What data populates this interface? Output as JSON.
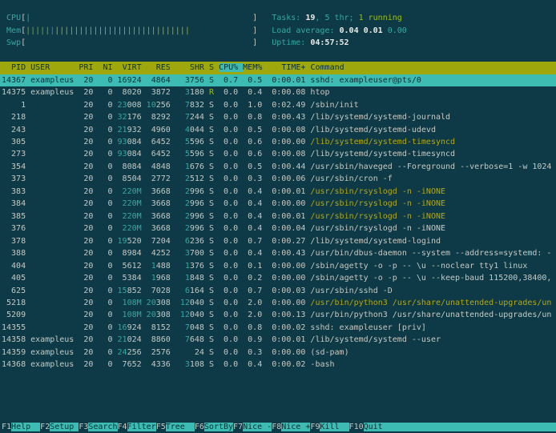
{
  "app": "htop",
  "colors": {
    "bg": "#0d3a46",
    "fg": "#c6c9c5",
    "teal": "#35a9a2",
    "white": "#e9ebe8",
    "green": "#9ebe0a",
    "yellow": "#b5a70d",
    "blue": "#4b84b8",
    "memGreen": "#79a634",
    "selBg": "#3cbcb2",
    "selFg": "#0b3137",
    "hdrBg": "#9ea70b",
    "hdrFg": "#0b3137",
    "sortBg": "#3cbcb2"
  },
  "meters": [
    {
      "name": "cpu-meter",
      "label": "CPU",
      "bars": [
        {
          "color": "teal",
          "count": 1
        }
      ]
    },
    {
      "name": "mem-meter",
      "label": "Mem",
      "bars": [
        {
          "color": "memGreen",
          "count": 5
        },
        {
          "color": "blue",
          "count": 1
        },
        {
          "color": "yellow",
          "count": 28
        }
      ]
    },
    {
      "name": "swp-meter",
      "label": "Swp",
      "bars": []
    }
  ],
  "info_lines": [
    {
      "name": "tasks-summary",
      "parts": [
        {
          "t": "Tasks: ",
          "c": "teal"
        },
        {
          "t": "19",
          "c": "white",
          "b": true
        },
        {
          "t": ", 5 thr; ",
          "c": "teal"
        },
        {
          "t": "1 running",
          "c": "green"
        }
      ]
    },
    {
      "name": "load-average",
      "parts": [
        {
          "t": "Load average: ",
          "c": "teal"
        },
        {
          "t": "0.04 ",
          "c": "white",
          "b": true
        },
        {
          "t": "0.01 ",
          "c": "white",
          "b": true
        },
        {
          "t": "0.00",
          "c": "teal"
        }
      ]
    },
    {
      "name": "uptime",
      "parts": [
        {
          "t": "Uptime: ",
          "c": "teal"
        },
        {
          "t": "04:57:52",
          "c": "white",
          "b": true
        }
      ]
    }
  ],
  "table": {
    "columns": [
      "PID",
      "USER",
      "PRI",
      "NI",
      "VIRT",
      "RES",
      "SHR",
      "S",
      "CPU%",
      "MEM%",
      "TIME+",
      "Command"
    ],
    "sort_column": "CPU%",
    "rows": [
      {
        "pid": "14367",
        "user": "exampleus",
        "pri": "20",
        "ni": "0",
        "virt": [
          "16924",
          2
        ],
        "res": [
          "4864",
          0
        ],
        "shr": [
          "3756",
          1
        ],
        "s": "S",
        "cpu": "0.7",
        "mem": "0.5",
        "time": "0:00.01",
        "cmd": "sshd: exampleuser@pts/0",
        "selected": true
      },
      {
        "pid": "14375",
        "user": "exampleus",
        "pri": "20",
        "ni": "0",
        "virt": [
          "8020",
          0
        ],
        "res": [
          "3872",
          0
        ],
        "shr": [
          "3180",
          1
        ],
        "s": "R",
        "cpu": "0.0",
        "mem": "0.4",
        "time": "0:00.08",
        "cmd": "htop"
      },
      {
        "pid": "1",
        "user": "",
        "pri": "20",
        "ni": "0",
        "virt": [
          "23008",
          2
        ],
        "res": [
          "10256",
          2
        ],
        "shr": [
          "7832",
          1
        ],
        "s": "S",
        "cpu": "0.0",
        "mem": "1.0",
        "time": "0:02.49",
        "cmd": "/sbin/init"
      },
      {
        "pid": "218",
        "user": "",
        "pri": "20",
        "ni": "0",
        "virt": [
          "32176",
          2
        ],
        "res": [
          "8292",
          0
        ],
        "shr": [
          "7244",
          1
        ],
        "s": "S",
        "cpu": "0.0",
        "mem": "0.8",
        "time": "0:00.43",
        "cmd": "/lib/systemd/systemd-journald"
      },
      {
        "pid": "243",
        "user": "",
        "pri": "20",
        "ni": "0",
        "virt": [
          "21932",
          2
        ],
        "res": [
          "4960",
          0
        ],
        "shr": [
          "4044",
          1
        ],
        "s": "S",
        "cpu": "0.0",
        "mem": "0.5",
        "time": "0:00.08",
        "cmd": "/lib/systemd/systemd-udevd"
      },
      {
        "pid": "305",
        "user": "",
        "pri": "20",
        "ni": "0",
        "virt": [
          "93084",
          2
        ],
        "res": [
          "6452",
          0
        ],
        "shr": [
          "5596",
          1
        ],
        "s": "S",
        "cpu": "0.0",
        "mem": "0.6",
        "time": "0:00.00",
        "cmd": "/lib/systemd/systemd-timesyncd",
        "cmdColor": "yellow"
      },
      {
        "pid": "273",
        "user": "",
        "pri": "20",
        "ni": "0",
        "virt": [
          "93084",
          2
        ],
        "res": [
          "6452",
          0
        ],
        "shr": [
          "5596",
          1
        ],
        "s": "S",
        "cpu": "0.0",
        "mem": "0.6",
        "time": "0:00.08",
        "cmd": "/lib/systemd/systemd-timesyncd"
      },
      {
        "pid": "354",
        "user": "",
        "pri": "20",
        "ni": "0",
        "virt": [
          "8084",
          0
        ],
        "res": [
          "4848",
          0
        ],
        "shr": [
          "1676",
          1
        ],
        "s": "S",
        "cpu": "0.0",
        "mem": "0.5",
        "time": "0:00.44",
        "cmd": "/usr/sbin/haveged --Foreground --verbose=1 -w 1024"
      },
      {
        "pid": "373",
        "user": "",
        "pri": "20",
        "ni": "0",
        "virt": [
          "8504",
          0
        ],
        "res": [
          "2772",
          0
        ],
        "shr": [
          "2512",
          1
        ],
        "s": "S",
        "cpu": "0.0",
        "mem": "0.3",
        "time": "0:00.06",
        "cmd": "/usr/sbin/cron -f"
      },
      {
        "pid": "383",
        "user": "",
        "pri": "20",
        "ni": "0",
        "virt": [
          "220M",
          4
        ],
        "res": [
          "3668",
          0
        ],
        "shr": [
          "2996",
          1
        ],
        "s": "S",
        "cpu": "0.0",
        "mem": "0.4",
        "time": "0:00.01",
        "cmd": "/usr/sbin/rsyslogd -n -iNONE",
        "cmdColor": "yellow"
      },
      {
        "pid": "384",
        "user": "",
        "pri": "20",
        "ni": "0",
        "virt": [
          "220M",
          4
        ],
        "res": [
          "3668",
          0
        ],
        "shr": [
          "2996",
          1
        ],
        "s": "S",
        "cpu": "0.0",
        "mem": "0.4",
        "time": "0:00.00",
        "cmd": "/usr/sbin/rsyslogd -n -iNONE",
        "cmdColor": "yellow"
      },
      {
        "pid": "385",
        "user": "",
        "pri": "20",
        "ni": "0",
        "virt": [
          "220M",
          4
        ],
        "res": [
          "3668",
          0
        ],
        "shr": [
          "2996",
          1
        ],
        "s": "S",
        "cpu": "0.0",
        "mem": "0.4",
        "time": "0:00.01",
        "cmd": "/usr/sbin/rsyslogd -n -iNONE",
        "cmdColor": "yellow"
      },
      {
        "pid": "376",
        "user": "",
        "pri": "20",
        "ni": "0",
        "virt": [
          "220M",
          4
        ],
        "res": [
          "3668",
          0
        ],
        "shr": [
          "2996",
          1
        ],
        "s": "S",
        "cpu": "0.0",
        "mem": "0.4",
        "time": "0:00.04",
        "cmd": "/usr/sbin/rsyslogd -n -iNONE"
      },
      {
        "pid": "378",
        "user": "",
        "pri": "20",
        "ni": "0",
        "virt": [
          "19520",
          2
        ],
        "res": [
          "7204",
          0
        ],
        "shr": [
          "6236",
          1
        ],
        "s": "S",
        "cpu": "0.0",
        "mem": "0.7",
        "time": "0:00.27",
        "cmd": "/lib/systemd/systemd-logind"
      },
      {
        "pid": "388",
        "user": "",
        "pri": "20",
        "ni": "0",
        "virt": [
          "8984",
          0
        ],
        "res": [
          "4252",
          0
        ],
        "shr": [
          "3700",
          1
        ],
        "s": "S",
        "cpu": "0.0",
        "mem": "0.4",
        "time": "0:00.43",
        "cmd": "/usr/bin/dbus-daemon --system --address=systemd: -"
      },
      {
        "pid": "404",
        "user": "",
        "pri": "20",
        "ni": "0",
        "virt": [
          "5612",
          0
        ],
        "res": [
          "1488",
          1
        ],
        "shr": [
          "1376",
          1
        ],
        "s": "S",
        "cpu": "0.0",
        "mem": "0.1",
        "time": "0:00.00",
        "cmd": "/sbin/agetty -o -p -- \\u --noclear tty1 linux"
      },
      {
        "pid": "405",
        "user": "",
        "pri": "20",
        "ni": "0",
        "virt": [
          "5384",
          0
        ],
        "res": [
          "1968",
          1
        ],
        "shr": [
          "1848",
          1
        ],
        "s": "S",
        "cpu": "0.0",
        "mem": "0.2",
        "time": "0:00.00",
        "cmd": "/sbin/agetty -o -p -- \\u --keep-baud 115200,38400,"
      },
      {
        "pid": "625",
        "user": "",
        "pri": "20",
        "ni": "0",
        "virt": [
          "15852",
          2
        ],
        "res": [
          "7028",
          0
        ],
        "shr": [
          "6164",
          1
        ],
        "s": "S",
        "cpu": "0.0",
        "mem": "0.7",
        "time": "0:00.03",
        "cmd": "/usr/sbin/sshd -D"
      },
      {
        "pid": "5218",
        "user": "",
        "pri": "20",
        "ni": "0",
        "virt": [
          "108M",
          4
        ],
        "res": [
          "20308",
          2
        ],
        "shr": [
          "12040",
          2
        ],
        "s": "S",
        "cpu": "0.0",
        "mem": "2.0",
        "time": "0:00.00",
        "cmd": "/usr/bin/python3 /usr/share/unattended-upgrades/un",
        "cmdColor": "yellow"
      },
      {
        "pid": "5209",
        "user": "",
        "pri": "20",
        "ni": "0",
        "virt": [
          "108M",
          4
        ],
        "res": [
          "20308",
          2
        ],
        "shr": [
          "12040",
          2
        ],
        "s": "S",
        "cpu": "0.0",
        "mem": "2.0",
        "time": "0:00.13",
        "cmd": "/usr/bin/python3 /usr/share/unattended-upgrades/un"
      },
      {
        "pid": "14355",
        "user": "",
        "pri": "20",
        "ni": "0",
        "virt": [
          "16924",
          2
        ],
        "res": [
          "8152",
          0
        ],
        "shr": [
          "7048",
          1
        ],
        "s": "S",
        "cpu": "0.0",
        "mem": "0.8",
        "time": "0:00.02",
        "cmd": "sshd: exampleuser [priv]"
      },
      {
        "pid": "14358",
        "user": "exampleus",
        "pri": "20",
        "ni": "0",
        "virt": [
          "21024",
          2
        ],
        "res": [
          "8860",
          0
        ],
        "shr": [
          "7648",
          1
        ],
        "s": "S",
        "cpu": "0.0",
        "mem": "0.9",
        "time": "0:00.01",
        "cmd": "/lib/systemd/systemd --user"
      },
      {
        "pid": "14359",
        "user": "exampleus",
        "pri": "20",
        "ni": "0",
        "virt": [
          "24256",
          2
        ],
        "res": [
          "2576",
          0
        ],
        "shr": [
          "24",
          0
        ],
        "s": "S",
        "cpu": "0.0",
        "mem": "0.3",
        "time": "0:00.00",
        "cmd": "(sd-pam)"
      },
      {
        "pid": "14368",
        "user": "exampleus",
        "pri": "20",
        "ni": "0",
        "virt": [
          "7652",
          0
        ],
        "res": [
          "4336",
          0
        ],
        "shr": [
          "3108",
          1
        ],
        "s": "S",
        "cpu": "0.0",
        "mem": "0.4",
        "time": "0:00.02",
        "cmd": "-bash"
      }
    ]
  },
  "function_keys": [
    {
      "key": "F1",
      "label": "Help"
    },
    {
      "key": "F2",
      "label": "Setup"
    },
    {
      "key": "F3",
      "label": "Search"
    },
    {
      "key": "F4",
      "label": "Filter"
    },
    {
      "key": "F5",
      "label": "Tree"
    },
    {
      "key": "F6",
      "label": "SortBy"
    },
    {
      "key": "F7",
      "label": "Nice -"
    },
    {
      "key": "F8",
      "label": "Nice +"
    },
    {
      "key": "F9",
      "label": "Kill"
    },
    {
      "key": "F10",
      "label": "Quit"
    }
  ]
}
